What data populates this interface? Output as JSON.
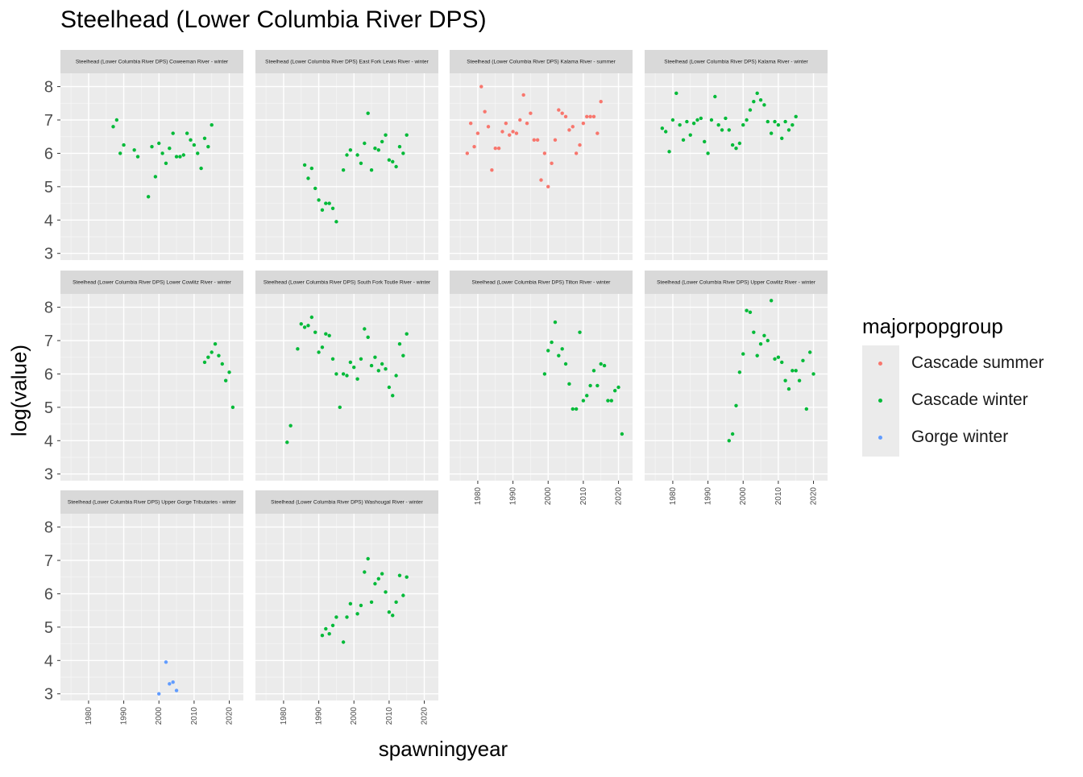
{
  "chart_data": {
    "type": "scatter",
    "title": "Steelhead (Lower Columbia River DPS)",
    "xlabel": "spawningyear",
    "ylabel": "log(value)",
    "xlim": [
      1972,
      2024
    ],
    "ylim": [
      2.8,
      8.4
    ],
    "x_ticks": [
      1980,
      1990,
      2000,
      2010,
      2020
    ],
    "y_ticks": [
      3,
      4,
      5,
      6,
      7,
      8
    ],
    "grid": true,
    "legend": {
      "title": "majorpopgroup",
      "position": "right",
      "entries": [
        {
          "name": "Cascade summer",
          "color": "#F8766D"
        },
        {
          "name": "Cascade winter",
          "color": "#00BA38"
        },
        {
          "name": "Gorge winter",
          "color": "#619CFF"
        }
      ]
    },
    "panels": [
      {
        "strip": "Steelhead (Lower Columbia River DPS) Coweeman River - winter",
        "group": "Cascade winter",
        "points": [
          [
            1987,
            6.8
          ],
          [
            1988,
            7.0
          ],
          [
            1989,
            6.0
          ],
          [
            1990,
            6.25
          ],
          [
            1993,
            6.1
          ],
          [
            1994,
            5.9
          ],
          [
            1997,
            4.7
          ],
          [
            1998,
            6.2
          ],
          [
            1999,
            5.3
          ],
          [
            2000,
            6.3
          ],
          [
            2001,
            6.0
          ],
          [
            2002,
            5.7
          ],
          [
            2003,
            6.15
          ],
          [
            2004,
            6.6
          ],
          [
            2005,
            5.9
          ],
          [
            2006,
            5.9
          ],
          [
            2007,
            5.95
          ],
          [
            2008,
            6.6
          ],
          [
            2009,
            6.4
          ],
          [
            2010,
            6.25
          ],
          [
            2011,
            6.0
          ],
          [
            2012,
            5.55
          ],
          [
            2013,
            6.45
          ],
          [
            2014,
            6.2
          ],
          [
            2015,
            6.85
          ]
        ]
      },
      {
        "strip": "Steelhead (Lower Columbia River DPS) East Fork Lewis River - winter",
        "group": "Cascade winter",
        "points": [
          [
            1986,
            5.65
          ],
          [
            1987,
            5.25
          ],
          [
            1988,
            5.55
          ],
          [
            1989,
            4.95
          ],
          [
            1990,
            4.6
          ],
          [
            1991,
            4.3
          ],
          [
            1992,
            4.5
          ],
          [
            1993,
            4.5
          ],
          [
            1994,
            4.35
          ],
          [
            1995,
            3.95
          ],
          [
            1997,
            5.5
          ],
          [
            1998,
            5.95
          ],
          [
            1999,
            6.1
          ],
          [
            2001,
            5.95
          ],
          [
            2002,
            5.7
          ],
          [
            2003,
            6.3
          ],
          [
            2004,
            7.2
          ],
          [
            2005,
            5.5
          ],
          [
            2006,
            6.15
          ],
          [
            2007,
            6.1
          ],
          [
            2008,
            6.35
          ],
          [
            2009,
            6.55
          ],
          [
            2010,
            5.8
          ],
          [
            2011,
            5.75
          ],
          [
            2012,
            5.6
          ],
          [
            2013,
            6.2
          ],
          [
            2014,
            6.0
          ],
          [
            2015,
            6.55
          ]
        ]
      },
      {
        "strip": "Steelhead (Lower Columbia River DPS) Kalama River - summer",
        "group": "Cascade summer",
        "points": [
          [
            1977,
            6.0
          ],
          [
            1978,
            6.9
          ],
          [
            1979,
            6.2
          ],
          [
            1980,
            6.6
          ],
          [
            1981,
            8.0
          ],
          [
            1982,
            7.25
          ],
          [
            1983,
            6.8
          ],
          [
            1984,
            5.5
          ],
          [
            1985,
            6.15
          ],
          [
            1986,
            6.15
          ],
          [
            1987,
            6.65
          ],
          [
            1988,
            6.9
          ],
          [
            1989,
            6.55
          ],
          [
            1990,
            6.65
          ],
          [
            1991,
            6.6
          ],
          [
            1992,
            7.0
          ],
          [
            1993,
            7.75
          ],
          [
            1994,
            6.9
          ],
          [
            1995,
            7.2
          ],
          [
            1996,
            6.4
          ],
          [
            1997,
            6.4
          ],
          [
            1998,
            5.2
          ],
          [
            1999,
            6.0
          ],
          [
            2000,
            5.0
          ],
          [
            2001,
            5.7
          ],
          [
            2002,
            6.4
          ],
          [
            2003,
            7.3
          ],
          [
            2004,
            7.2
          ],
          [
            2005,
            7.1
          ],
          [
            2006,
            6.7
          ],
          [
            2007,
            6.8
          ],
          [
            2008,
            6.0
          ],
          [
            2009,
            6.25
          ],
          [
            2010,
            6.9
          ],
          [
            2011,
            7.1
          ],
          [
            2012,
            7.1
          ],
          [
            2013,
            7.1
          ],
          [
            2014,
            6.6
          ],
          [
            2015,
            7.55
          ]
        ]
      },
      {
        "strip": "Steelhead (Lower Columbia River DPS) Kalama River - winter",
        "group": "Cascade winter",
        "points": [
          [
            1977,
            6.75
          ],
          [
            1978,
            6.65
          ],
          [
            1979,
            6.05
          ],
          [
            1980,
            7.0
          ],
          [
            1981,
            7.8
          ],
          [
            1982,
            6.85
          ],
          [
            1983,
            6.4
          ],
          [
            1984,
            6.95
          ],
          [
            1985,
            6.55
          ],
          [
            1986,
            6.9
          ],
          [
            1987,
            7.0
          ],
          [
            1988,
            7.05
          ],
          [
            1989,
            6.35
          ],
          [
            1990,
            6.0
          ],
          [
            1991,
            7.0
          ],
          [
            1992,
            7.7
          ],
          [
            1993,
            6.85
          ],
          [
            1994,
            6.7
          ],
          [
            1995,
            7.05
          ],
          [
            1996,
            6.7
          ],
          [
            1997,
            6.25
          ],
          [
            1998,
            6.15
          ],
          [
            1999,
            6.3
          ],
          [
            2000,
            6.85
          ],
          [
            2001,
            7.0
          ],
          [
            2002,
            7.3
          ],
          [
            2003,
            7.55
          ],
          [
            2004,
            7.8
          ],
          [
            2005,
            7.6
          ],
          [
            2006,
            7.45
          ],
          [
            2007,
            6.95
          ],
          [
            2008,
            6.6
          ],
          [
            2009,
            6.95
          ],
          [
            2010,
            6.85
          ],
          [
            2011,
            6.45
          ],
          [
            2012,
            6.95
          ],
          [
            2013,
            6.7
          ],
          [
            2014,
            6.85
          ],
          [
            2015,
            7.1
          ]
        ]
      },
      {
        "strip": "Steelhead (Lower Columbia River DPS) Lower Cowlitz River - winter",
        "group": "Cascade winter",
        "points": [
          [
            2013,
            6.35
          ],
          [
            2014,
            6.5
          ],
          [
            2015,
            6.65
          ],
          [
            2016,
            6.9
          ],
          [
            2017,
            6.55
          ],
          [
            2018,
            6.3
          ],
          [
            2019,
            5.8
          ],
          [
            2020,
            6.05
          ],
          [
            2021,
            5.0
          ]
        ]
      },
      {
        "strip": "Steelhead (Lower Columbia River DPS) South Fork Toutle River - winter",
        "group": "Cascade winter",
        "points": [
          [
            1981,
            3.95
          ],
          [
            1982,
            4.45
          ],
          [
            1984,
            6.75
          ],
          [
            1985,
            7.5
          ],
          [
            1986,
            7.4
          ],
          [
            1987,
            7.45
          ],
          [
            1988,
            7.7
          ],
          [
            1989,
            7.25
          ],
          [
            1990,
            6.65
          ],
          [
            1991,
            6.8
          ],
          [
            1992,
            7.2
          ],
          [
            1993,
            7.15
          ],
          [
            1994,
            6.45
          ],
          [
            1995,
            6.0
          ],
          [
            1996,
            5.0
          ],
          [
            1997,
            6.0
          ],
          [
            1998,
            5.95
          ],
          [
            1999,
            6.35
          ],
          [
            2000,
            6.2
          ],
          [
            2001,
            5.85
          ],
          [
            2002,
            6.45
          ],
          [
            2003,
            7.35
          ],
          [
            2004,
            7.1
          ],
          [
            2005,
            6.25
          ],
          [
            2006,
            6.5
          ],
          [
            2007,
            6.1
          ],
          [
            2008,
            6.3
          ],
          [
            2009,
            6.15
          ],
          [
            2010,
            5.6
          ],
          [
            2011,
            5.35
          ],
          [
            2012,
            5.95
          ],
          [
            2013,
            6.9
          ],
          [
            2014,
            6.55
          ],
          [
            2015,
            7.2
          ]
        ]
      },
      {
        "strip": "Steelhead (Lower Columbia River DPS) Tilton River - winter",
        "group": "Cascade winter",
        "points": [
          [
            1999,
            6.0
          ],
          [
            2000,
            6.7
          ],
          [
            2001,
            6.95
          ],
          [
            2002,
            7.55
          ],
          [
            2003,
            6.55
          ],
          [
            2004,
            6.75
          ],
          [
            2005,
            6.3
          ],
          [
            2006,
            5.7
          ],
          [
            2007,
            4.95
          ],
          [
            2008,
            4.95
          ],
          [
            2009,
            7.25
          ],
          [
            2010,
            5.2
          ],
          [
            2011,
            5.35
          ],
          [
            2012,
            5.65
          ],
          [
            2013,
            6.1
          ],
          [
            2014,
            5.65
          ],
          [
            2015,
            6.3
          ],
          [
            2016,
            6.25
          ],
          [
            2017,
            5.2
          ],
          [
            2018,
            5.2
          ],
          [
            2019,
            5.5
          ],
          [
            2020,
            5.6
          ],
          [
            2021,
            4.2
          ]
        ]
      },
      {
        "strip": "Steelhead (Lower Columbia River DPS) Upper Cowlitz River - winter",
        "group": "Cascade winter",
        "points": [
          [
            1996,
            4.0
          ],
          [
            1997,
            4.2
          ],
          [
            1998,
            5.05
          ],
          [
            1999,
            6.05
          ],
          [
            2000,
            6.6
          ],
          [
            2001,
            7.9
          ],
          [
            2002,
            7.85
          ],
          [
            2003,
            7.25
          ],
          [
            2004,
            6.55
          ],
          [
            2005,
            6.9
          ],
          [
            2006,
            7.15
          ],
          [
            2007,
            7.0
          ],
          [
            2008,
            8.2
          ],
          [
            2009,
            6.45
          ],
          [
            2010,
            6.5
          ],
          [
            2011,
            6.35
          ],
          [
            2012,
            5.8
          ],
          [
            2013,
            5.55
          ],
          [
            2014,
            6.1
          ],
          [
            2015,
            6.1
          ],
          [
            2016,
            5.8
          ],
          [
            2017,
            6.4
          ],
          [
            2018,
            4.95
          ],
          [
            2019,
            6.65
          ],
          [
            2020,
            6.0
          ]
        ]
      },
      {
        "strip": "Steelhead (Lower Columbia River DPS) Upper Gorge Tributaries - winter",
        "group": "Gorge winter",
        "points": [
          [
            2000,
            3.0
          ],
          [
            2002,
            3.95
          ],
          [
            2003,
            3.3
          ],
          [
            2004,
            3.35
          ],
          [
            2005,
            3.1
          ]
        ]
      },
      {
        "strip": "Steelhead (Lower Columbia River DPS) Washougal River - winter",
        "group": "Cascade winter",
        "points": [
          [
            1991,
            4.75
          ],
          [
            1992,
            4.95
          ],
          [
            1993,
            4.8
          ],
          [
            1994,
            5.05
          ],
          [
            1995,
            5.3
          ],
          [
            1997,
            4.55
          ],
          [
            1998,
            5.3
          ],
          [
            1999,
            5.7
          ],
          [
            2001,
            5.4
          ],
          [
            2002,
            5.65
          ],
          [
            2003,
            6.65
          ],
          [
            2004,
            7.05
          ],
          [
            2005,
            5.75
          ],
          [
            2006,
            6.3
          ],
          [
            2007,
            6.45
          ],
          [
            2008,
            6.6
          ],
          [
            2009,
            6.05
          ],
          [
            2010,
            5.45
          ],
          [
            2011,
            5.35
          ],
          [
            2012,
            5.75
          ],
          [
            2013,
            6.55
          ],
          [
            2014,
            5.95
          ],
          [
            2015,
            6.5
          ]
        ]
      }
    ]
  }
}
